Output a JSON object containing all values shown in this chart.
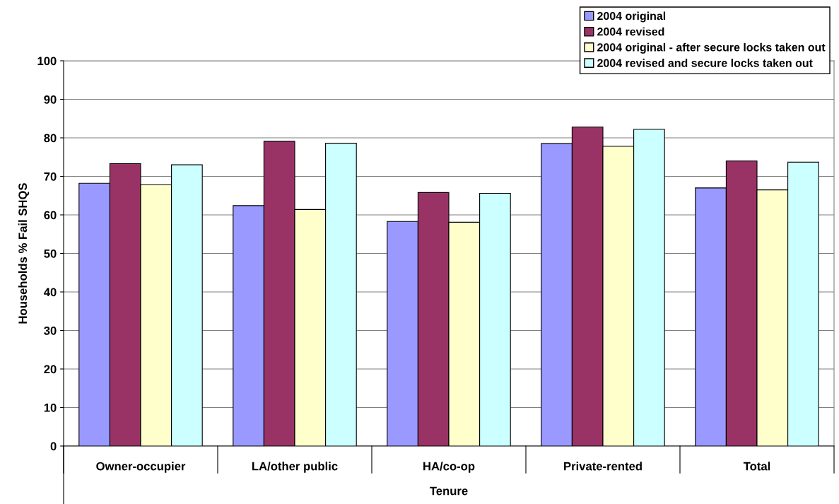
{
  "chart_data": {
    "type": "bar",
    "xlabel": "Tenure",
    "ylabel": "Households % Fail SHQS",
    "categories": [
      "Owner-occupier",
      "LA/other public",
      "HA/co-op",
      "Private-rented",
      "Total"
    ],
    "series": [
      {
        "name": "2004 original",
        "color": "#9999ff",
        "values": [
          68.2,
          62.4,
          58.3,
          78.5,
          67.0
        ]
      },
      {
        "name": "2004 revised",
        "color": "#993366",
        "values": [
          73.3,
          79.1,
          65.8,
          82.8,
          74.0
        ]
      },
      {
        "name": "2004 original - after secure locks taken out",
        "color": "#ffffcc",
        "values": [
          67.8,
          61.4,
          58.1,
          77.8,
          66.5
        ]
      },
      {
        "name": "2004 revised and secure locks taken out",
        "color": "#ccffff",
        "values": [
          73.0,
          78.6,
          65.6,
          82.2,
          73.7
        ]
      }
    ],
    "ylim": [
      0,
      100
    ],
    "yticks": [
      0,
      10,
      20,
      30,
      40,
      50,
      60,
      70,
      80,
      90,
      100
    ],
    "grid": "y",
    "legend": "top right"
  }
}
